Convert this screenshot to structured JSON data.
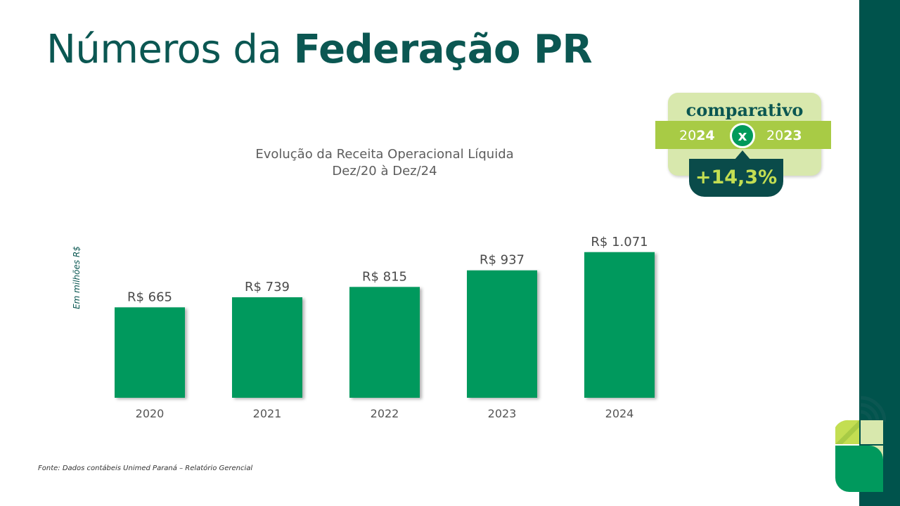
{
  "slide": {
    "title_light": "Números da",
    "title_bold": "Federação PR",
    "source": "Fonte: Dados contábeis Unimed Paraná – Relatório Gerencial"
  },
  "colors": {
    "bar": "#00995d",
    "title": "#0b5752",
    "side_bar": "#00534c",
    "badge_light": "#d8e8ad",
    "badge_strip": "#a8cb45",
    "badge_dark": "#0a4b4a",
    "badge_pct": "#c3de52"
  },
  "chart_data": {
    "type": "bar",
    "title_line1": "Evolução da Receita Operacional Líquida",
    "title_line2": "Dez/20 à Dez/24",
    "ylabel": "Em milhões R$",
    "categories": [
      "2020",
      "2021",
      "2022",
      "2023",
      "2024"
    ],
    "values": [
      665,
      739,
      815,
      937,
      1071
    ],
    "value_labels": [
      "R$ 665",
      "R$ 739",
      "R$ 815",
      "R$ 937",
      "R$ 1.071"
    ],
    "grid": false,
    "legend": "none"
  },
  "badge": {
    "label": "comparativo",
    "year_a_prefix": "20",
    "year_a_suffix": "24",
    "vs": "x",
    "year_b_prefix": "20",
    "year_b_suffix": "23",
    "change": "+14,3%"
  }
}
